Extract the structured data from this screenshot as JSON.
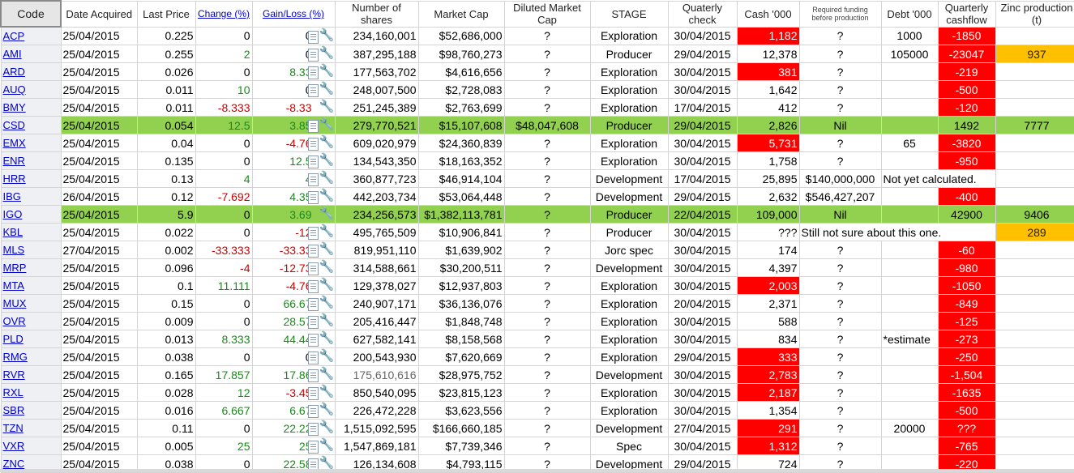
{
  "headers": {
    "code": "Code",
    "date": "Date Acquired",
    "last_price": "Last Price",
    "change": "Change (%)",
    "gain_loss": "Gain/Loss (%)",
    "shares": "Number of shares",
    "mcap": "Market Cap",
    "diluted": "Diluted Market Cap",
    "stage": "STAGE",
    "qcheck": "Quaterly check",
    "cash": "Cash '000",
    "funding": "Required funding before production",
    "debt": "Debt '000",
    "qcash": "Quarterly cashflow",
    "zinc": "Zinc production (t)"
  },
  "rows": [
    {
      "code": "ACP",
      "date": "25/04/2015",
      "price": "0.225",
      "change": "0",
      "gl": "0",
      "shares": "234,160,001",
      "mcap": "$52,686,000",
      "diluted": "?",
      "stage": "Exploration",
      "qcheck": "30/04/2015",
      "cash": "1,182",
      "funding": "?",
      "debt": "1000",
      "qcash": "-1850",
      "zinc": ""
    },
    {
      "code": "AMI",
      "date": "25/04/2015",
      "price": "0.255",
      "change": "2",
      "gl": "0",
      "shares": "387,295,188",
      "mcap": "$98,760,273",
      "diluted": "?",
      "stage": "Producer",
      "qcheck": "29/04/2015",
      "cash": "12,378",
      "funding": "?",
      "debt": "105000",
      "qcash": "-23047",
      "zinc": "937"
    },
    {
      "code": "ARD",
      "date": "25/04/2015",
      "price": "0.026",
      "change": "0",
      "gl": "8.33",
      "shares": "177,563,702",
      "mcap": "$4,616,656",
      "diluted": "?",
      "stage": "Exploration",
      "qcheck": "30/04/2015",
      "cash": "381",
      "funding": "?",
      "debt": "",
      "qcash": "-219",
      "zinc": ""
    },
    {
      "code": "AUQ",
      "date": "25/04/2015",
      "price": "0.011",
      "change": "10",
      "gl": "0",
      "shares": "248,007,500",
      "mcap": "$2,728,083",
      "diluted": "?",
      "stage": "Exploration",
      "qcheck": "30/04/2015",
      "cash": "1,642",
      "funding": "?",
      "debt": "",
      "qcash": "-500",
      "zinc": ""
    },
    {
      "code": "BMY",
      "date": "25/04/2015",
      "price": "0.011",
      "change": "-8.333",
      "gl": "-8.33",
      "shares": "251,245,389",
      "mcap": "$2,763,699",
      "diluted": "?",
      "stage": "Exploration",
      "qcheck": "17/04/2015",
      "cash": "412",
      "funding": "?",
      "debt": "",
      "qcash": "-120",
      "zinc": ""
    },
    {
      "code": "CSD",
      "date": "25/04/2015",
      "price": "0.054",
      "change": "12.5",
      "gl": "3.85",
      "shares": "279,770,521",
      "mcap": "$15,107,608",
      "diluted": "$48,047,608",
      "stage": "Producer",
      "qcheck": "29/04/2015",
      "cash": "2,826",
      "funding": "Nil",
      "debt": "",
      "qcash": "1492",
      "zinc": "7777"
    },
    {
      "code": "EMX",
      "date": "25/04/2015",
      "price": "0.04",
      "change": "0",
      "gl": "-4.76",
      "shares": "609,020,979",
      "mcap": "$24,360,839",
      "diluted": "?",
      "stage": "Exploration",
      "qcheck": "30/04/2015",
      "cash": "5,731",
      "funding": "?",
      "debt": "65",
      "qcash": "-3820",
      "zinc": ""
    },
    {
      "code": "ENR",
      "date": "25/04/2015",
      "price": "0.135",
      "change": "0",
      "gl": "12.5",
      "shares": "134,543,350",
      "mcap": "$18,163,352",
      "diluted": "?",
      "stage": "Exploration",
      "qcheck": "30/04/2015",
      "cash": "1,758",
      "funding": "?",
      "debt": "",
      "qcash": "-950",
      "zinc": ""
    },
    {
      "code": "HRR",
      "date": "25/04/2015",
      "price": "0.13",
      "change": "4",
      "gl": "4",
      "shares": "360,877,723",
      "mcap": "$46,914,104",
      "diluted": "?",
      "stage": "Development",
      "qcheck": "17/04/2015",
      "cash": "25,895",
      "funding": "$140,000,000",
      "debt": "Not yet calculated.",
      "qcash": "",
      "zinc": ""
    },
    {
      "code": "IBG",
      "date": "26/04/2015",
      "price": "0.12",
      "change": "-7.692",
      "gl": "4.35",
      "shares": "442,203,734",
      "mcap": "$53,064,448",
      "diluted": "?",
      "stage": "Development",
      "qcheck": "29/04/2015",
      "cash": "2,632",
      "funding": "$546,427,207",
      "debt": "",
      "qcash": "-400",
      "zinc": ""
    },
    {
      "code": "IGO",
      "date": "25/04/2015",
      "price": "5.9",
      "change": "0",
      "gl": "3.69",
      "shares": "234,256,573",
      "mcap": "$1,382,113,781",
      "diluted": "?",
      "stage": "Producer",
      "qcheck": "22/04/2015",
      "cash": "109,000",
      "funding": "Nil",
      "debt": "",
      "qcash": "42900",
      "zinc": "9406"
    },
    {
      "code": "KBL",
      "date": "25/04/2015",
      "price": "0.022",
      "change": "0",
      "gl": "-12",
      "shares": "495,765,509",
      "mcap": "$10,906,841",
      "diluted": "?",
      "stage": "Producer",
      "qcheck": "30/04/2015",
      "cash": "???",
      "funding": "Still not sure about this one.",
      "debt": "",
      "qcash": "",
      "zinc": "289"
    },
    {
      "code": "MLS",
      "date": "27/04/2015",
      "price": "0.002",
      "change": "-33.333",
      "gl": "-33.33",
      "shares": "819,951,110",
      "mcap": "$1,639,902",
      "diluted": "?",
      "stage": "Jorc spec",
      "qcheck": "30/04/2015",
      "cash": "174",
      "funding": "?",
      "debt": "",
      "qcash": "-60",
      "zinc": ""
    },
    {
      "code": "MRP",
      "date": "25/04/2015",
      "price": "0.096",
      "change": "-4",
      "gl": "-12.73",
      "shares": "314,588,661",
      "mcap": "$30,200,511",
      "diluted": "?",
      "stage": "Development",
      "qcheck": "30/04/2015",
      "cash": "4,397",
      "funding": "?",
      "debt": "",
      "qcash": "-980",
      "zinc": ""
    },
    {
      "code": "MTA",
      "date": "25/04/2015",
      "price": "0.1",
      "change": "11.111",
      "gl": "-4.76",
      "shares": "129,378,027",
      "mcap": "$12,937,803",
      "diluted": "?",
      "stage": "Exploration",
      "qcheck": "30/04/2015",
      "cash": "2,003",
      "funding": "?",
      "debt": "",
      "qcash": "-1050",
      "zinc": ""
    },
    {
      "code": "MUX",
      "date": "25/04/2015",
      "price": "0.15",
      "change": "0",
      "gl": "66.67",
      "shares": "240,907,171",
      "mcap": "$36,136,076",
      "diluted": "?",
      "stage": "Exploration",
      "qcheck": "20/04/2015",
      "cash": "2,371",
      "funding": "?",
      "debt": "",
      "qcash": "-849",
      "zinc": ""
    },
    {
      "code": "OVR",
      "date": "25/04/2015",
      "price": "0.009",
      "change": "0",
      "gl": "28.57",
      "shares": "205,416,447",
      "mcap": "$1,848,748",
      "diluted": "?",
      "stage": "Exploration",
      "qcheck": "30/04/2015",
      "cash": "588",
      "funding": "?",
      "debt": "",
      "qcash": "-125",
      "zinc": ""
    },
    {
      "code": "PLD",
      "date": "25/04/2015",
      "price": "0.013",
      "change": "8.333",
      "gl": "44.44",
      "shares": "627,582,141",
      "mcap": "$8,158,568",
      "diluted": "?",
      "stage": "Exploration",
      "qcheck": "30/04/2015",
      "cash": "834",
      "funding": "?",
      "debt": "*estimate",
      "qcash": "-273",
      "zinc": ""
    },
    {
      "code": "RMG",
      "date": "25/04/2015",
      "price": "0.038",
      "change": "0",
      "gl": "0",
      "shares": "200,543,930",
      "mcap": "$7,620,669",
      "diluted": "?",
      "stage": "Exploration",
      "qcheck": "29/04/2015",
      "cash": "333",
      "funding": "?",
      "debt": "",
      "qcash": "-250",
      "zinc": ""
    },
    {
      "code": "RVR",
      "date": "25/04/2015",
      "price": "0.165",
      "change": "17.857",
      "gl": "17.86",
      "shares": "175,610,616",
      "mcap": "$28,975,752",
      "diluted": "?",
      "stage": "Development",
      "qcheck": "30/04/2015",
      "cash": "2,783",
      "funding": "?",
      "debt": "",
      "qcash": "-1,504",
      "zinc": ""
    },
    {
      "code": "RXL",
      "date": "25/04/2015",
      "price": "0.028",
      "change": "12",
      "gl": "-3.45",
      "shares": "850,540,095",
      "mcap": "$23,815,123",
      "diluted": "?",
      "stage": "Exploration",
      "qcheck": "30/04/2015",
      "cash": "2,187",
      "funding": "?",
      "debt": "",
      "qcash": "-1635",
      "zinc": ""
    },
    {
      "code": "SBR",
      "date": "25/04/2015",
      "price": "0.016",
      "change": "6.667",
      "gl": "6.67",
      "shares": "226,472,228",
      "mcap": "$3,623,556",
      "diluted": "?",
      "stage": "Exploration",
      "qcheck": "30/04/2015",
      "cash": "1,354",
      "funding": "?",
      "debt": "",
      "qcash": "-500",
      "zinc": ""
    },
    {
      "code": "TZN",
      "date": "25/04/2015",
      "price": "0.11",
      "change": "0",
      "gl": "22.22",
      "shares": "1,515,092,595",
      "mcap": "$166,660,185",
      "diluted": "?",
      "stage": "Development",
      "qcheck": "27/04/2015",
      "cash": "291",
      "funding": "?",
      "debt": "20000",
      "qcash": "???",
      "zinc": ""
    },
    {
      "code": "VXR",
      "date": "25/04/2015",
      "price": "0.005",
      "change": "25",
      "gl": "25",
      "shares": "1,547,869,181",
      "mcap": "$7,739,346",
      "diluted": "?",
      "stage": "Spec",
      "qcheck": "30/04/2015",
      "cash": "1,312",
      "funding": "?",
      "debt": "",
      "qcash": "-765",
      "zinc": ""
    },
    {
      "code": "ZNC",
      "date": "25/04/2015",
      "price": "0.038",
      "change": "0",
      "gl": "22.58",
      "shares": "126,134,608",
      "mcap": "$4,793,115",
      "diluted": "?",
      "stage": "Development",
      "qcheck": "29/04/2015",
      "cash": "724",
      "funding": "?",
      "debt": "",
      "qcash": "-220",
      "zinc": ""
    }
  ],
  "colors": {
    "red_cell": "#ff0000",
    "orange_cell": "#ffc000",
    "green_row": "#92d050",
    "positive": "#1a8a1a",
    "negative": "#cc0000",
    "link": "#0000cc"
  },
  "icons": [
    "document-icon",
    "wrench-icon"
  ],
  "highlights": {
    "red_cash": [
      "ACP",
      "ARD",
      "EMX",
      "MTA",
      "RMG",
      "RVR",
      "RXL",
      "TZN",
      "VXR"
    ],
    "orange_zinc": [
      "AMI",
      "KBL"
    ],
    "green_rows": [
      "CSD",
      "IGO"
    ],
    "grey_shares": [
      "RVR"
    ]
  }
}
